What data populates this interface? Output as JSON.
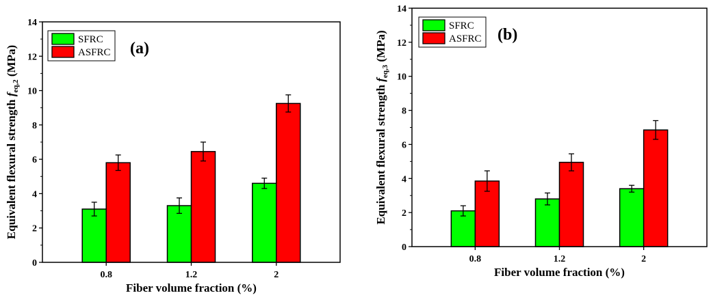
{
  "chart_data": [
    {
      "type": "bar",
      "panel_label": "(a)",
      "categories": [
        "0.8",
        "1.2",
        "2"
      ],
      "series": [
        {
          "name": "SFRC",
          "color": "#00ff00",
          "values": [
            3.1,
            3.3,
            4.6
          ],
          "errors": [
            0.4,
            0.45,
            0.3
          ]
        },
        {
          "name": "ASFRC",
          "color": "#ff0000",
          "values": [
            5.8,
            6.45,
            9.25
          ],
          "errors": [
            0.45,
            0.55,
            0.5
          ]
        }
      ],
      "xlabel": "Fiber volume fraction (%)",
      "ylabel_main": "Equivalent flexural strength ",
      "ylabel_f": "f",
      "ylabel_sub": "eq,2",
      "ylabel_unit": " (MPa)",
      "ylim": [
        0,
        14
      ],
      "yticks": [
        "0",
        "2",
        "4",
        "6",
        "8",
        "10",
        "12",
        "14"
      ],
      "legend_position": "top-left",
      "grid": false
    },
    {
      "type": "bar",
      "panel_label": "(b)",
      "categories": [
        "0.8",
        "1.2",
        "2"
      ],
      "series": [
        {
          "name": "SFRC",
          "color": "#00ff00",
          "values": [
            2.1,
            2.8,
            3.4
          ],
          "errors": [
            0.3,
            0.35,
            0.2
          ]
        },
        {
          "name": "ASFRC",
          "color": "#ff0000",
          "values": [
            3.85,
            4.95,
            6.85
          ],
          "errors": [
            0.6,
            0.5,
            0.55
          ]
        }
      ],
      "xlabel": "Fiber volume fraction (%)",
      "ylabel_main": "Equivalent flexural strength ",
      "ylabel_f": "f",
      "ylabel_sub": "eq,3",
      "ylabel_unit": " (MPa)",
      "ylim": [
        0,
        14
      ],
      "yticks": [
        "0",
        "2",
        "4",
        "6",
        "8",
        "10",
        "12",
        "14"
      ],
      "legend_position": "top-left",
      "grid": false
    }
  ]
}
